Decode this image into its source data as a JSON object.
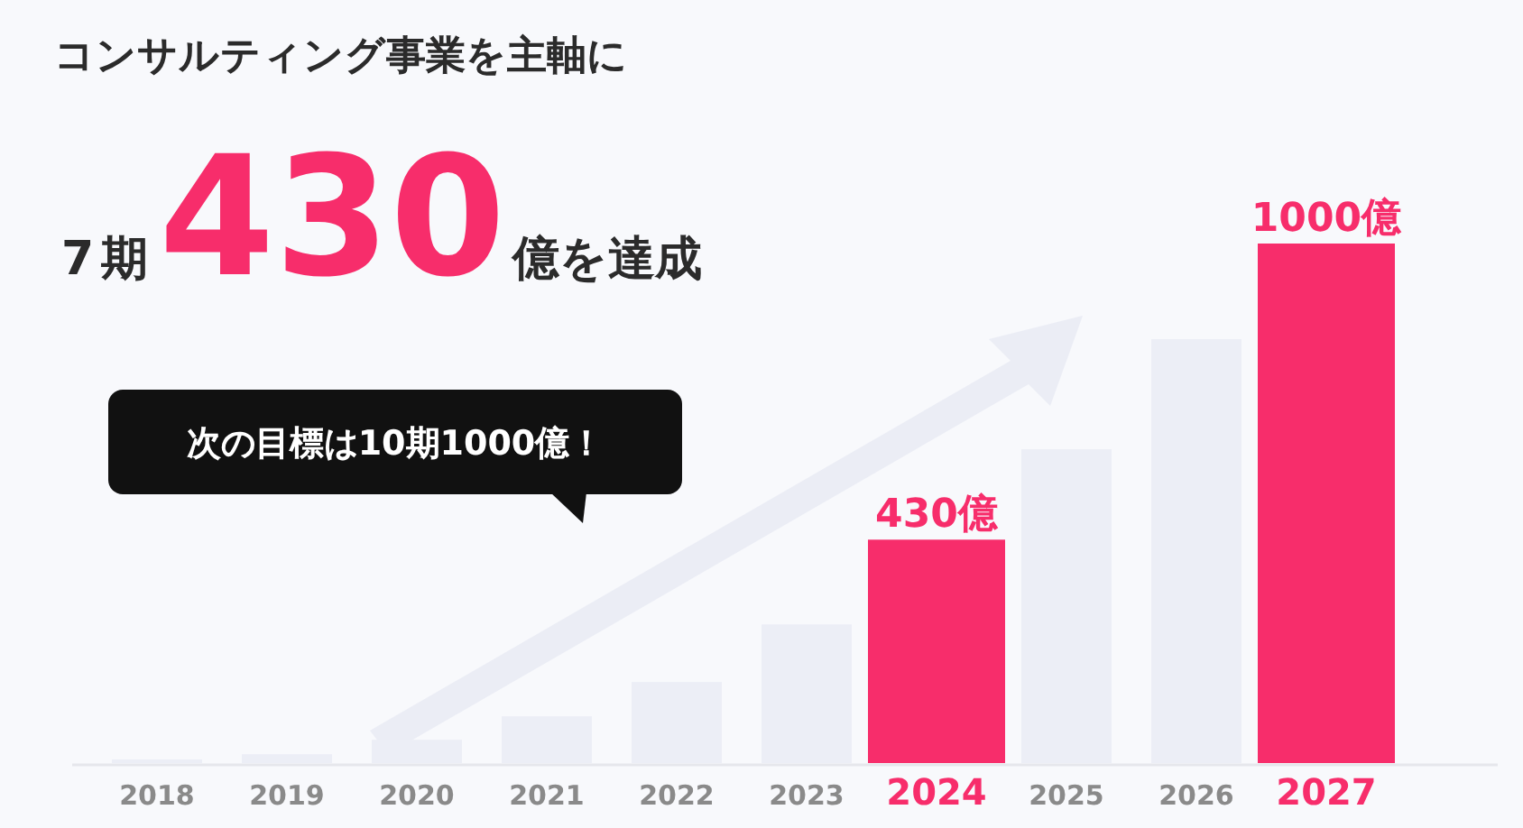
{
  "chart_data": {
    "type": "bar",
    "title": "コンサルティング事業を主軸に",
    "subtitle": "7期430億を達成",
    "categories": [
      "2018",
      "2019",
      "2020",
      "2021",
      "2022",
      "2023",
      "2024",
      "2025",
      "2026",
      "2027"
    ],
    "values": [
      7,
      17,
      45,
      90,
      156,
      267,
      430,
      604,
      816,
      1000
    ],
    "colors": [
      "#eceef6",
      "#eceef6",
      "#eceef6",
      "#eceef6",
      "#eceef6",
      "#eceef6",
      "#f72d6b",
      "#eceef6",
      "#eceef6",
      "#f72d6b"
    ],
    "value_labels": [
      null,
      null,
      null,
      null,
      null,
      null,
      "430億",
      null,
      null,
      "1000億"
    ],
    "annotations": [
      "次の目標は10期1000億！"
    ]
  }
}
